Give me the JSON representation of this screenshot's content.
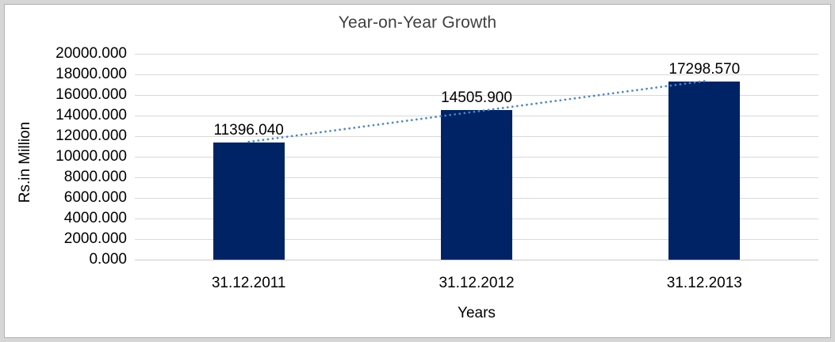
{
  "chart_data": {
    "type": "bar",
    "title": "Year-on-Year Growth",
    "xlabel": "Years",
    "ylabel": "Rs.in Million",
    "categories": [
      "31.12.2011",
      "31.12.2012",
      "31.12.2013"
    ],
    "values": [
      11396.04,
      14505.9,
      17298.57
    ],
    "data_labels": [
      "11396.040",
      "14505.900",
      "17298.570"
    ],
    "y_ticks": [
      "0.000",
      "2000.000",
      "4000.000",
      "6000.000",
      "8000.000",
      "10000.000",
      "12000.000",
      "14000.000",
      "16000.000",
      "18000.000",
      "20000.000"
    ],
    "ylim": [
      0,
      20000
    ],
    "grid": "horizontal",
    "legend": "none",
    "trendline": {
      "style": "dotted",
      "fit": "linear",
      "color": "#4a86c8",
      "span": [
        "31.12.2011",
        "31.12.2013"
      ]
    },
    "colors": {
      "bar_fill": "#002366",
      "gridline": "#d9d9d9",
      "axis_line": "#c9c9c9",
      "title_text": "#3f3f3f",
      "tick_text": "#000000",
      "frame": "#d6d6d6"
    }
  }
}
